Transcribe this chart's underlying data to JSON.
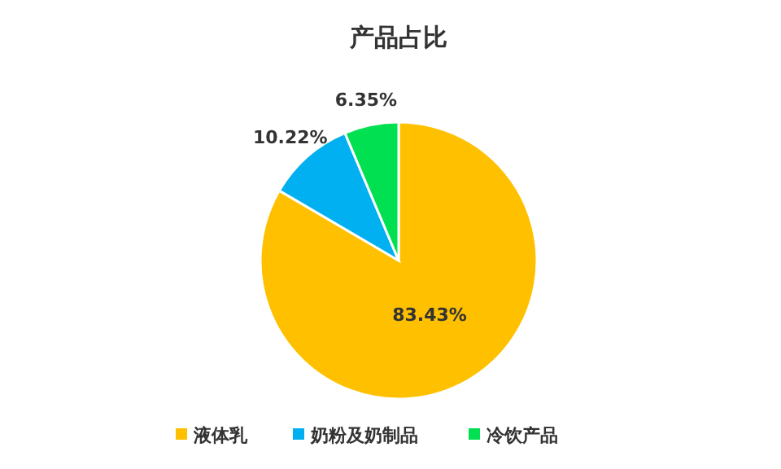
{
  "chart_data": {
    "type": "pie",
    "title": "产品占比",
    "categories": [
      "液体乳",
      "奶粉及奶制品",
      "冷饮产品"
    ],
    "values": [
      83.43,
      10.22,
      6.35
    ],
    "colors": [
      "#ffc000",
      "#00b0f0",
      "#00e050"
    ],
    "value_labels": [
      "83.43%",
      "10.22%",
      "6.35%"
    ],
    "legend": "bottom"
  }
}
